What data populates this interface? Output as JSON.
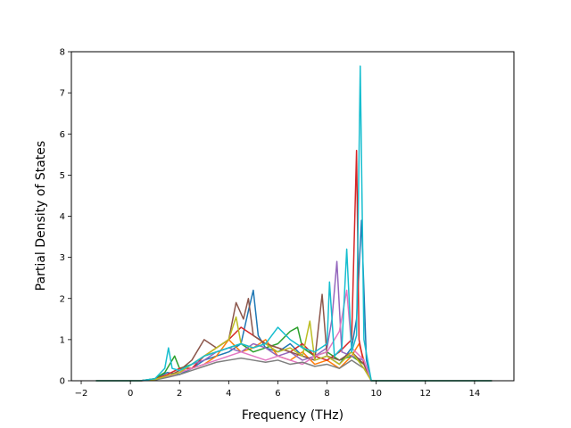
{
  "chart_data": {
    "type": "line",
    "title": "",
    "xlabel": "Frequency (THz)",
    "ylabel": "Partial Density of States",
    "xlim": [
      -2.4,
      15.6
    ],
    "ylim": [
      0,
      8
    ],
    "xticks": [
      -2,
      0,
      2,
      4,
      6,
      8,
      10,
      12,
      14
    ],
    "yticks": [
      0,
      1,
      2,
      3,
      4,
      5,
      6,
      7,
      8
    ],
    "xtick_labels": [
      "−2",
      "0",
      "2",
      "4",
      "6",
      "8",
      "10",
      "12",
      "14"
    ],
    "ytick_labels": [
      "0",
      "1",
      "2",
      "3",
      "4",
      "5",
      "6",
      "7",
      "8"
    ],
    "grid": false,
    "legend": "none",
    "colors": [
      "#1f77b4",
      "#ff7f0e",
      "#2ca02c",
      "#d62728",
      "#9467bd",
      "#8c564b",
      "#e377c2",
      "#7f7f7f",
      "#bcbd22",
      "#17becf"
    ],
    "series": [
      {
        "color": "#1f77b4",
        "x": [
          -1.4,
          0.4,
          1.0,
          1.5,
          2.0,
          2.5,
          3.0,
          3.5,
          4.0,
          4.5,
          4.8,
          5.0,
          5.2,
          5.5,
          6.0,
          6.5,
          7.0,
          7.5,
          8.0,
          8.5,
          9.0,
          9.2,
          9.4,
          9.6,
          9.8,
          14.7
        ],
        "y": [
          0,
          0,
          0.05,
          0.2,
          0.15,
          0.3,
          0.5,
          0.6,
          0.7,
          0.9,
          1.7,
          2.2,
          1.1,
          0.8,
          0.7,
          0.9,
          0.6,
          0.5,
          0.6,
          0.4,
          0.8,
          1.5,
          3.9,
          0.5,
          0,
          0
        ]
      },
      {
        "color": "#ff7f0e",
        "x": [
          -1.4,
          0.4,
          1.0,
          1.5,
          2.0,
          2.5,
          3.0,
          3.5,
          4.0,
          4.5,
          5.0,
          5.5,
          6.0,
          6.5,
          7.0,
          7.5,
          8.0,
          8.5,
          9.0,
          9.3,
          9.6,
          9.8,
          14.7
        ],
        "y": [
          0,
          0,
          0.03,
          0.1,
          0.2,
          0.3,
          0.4,
          0.6,
          1.0,
          0.7,
          0.8,
          1.0,
          0.6,
          0.5,
          0.7,
          0.4,
          0.5,
          0.3,
          0.6,
          0.9,
          0.3,
          0,
          0
        ]
      },
      {
        "color": "#2ca02c",
        "x": [
          -1.4,
          0.4,
          1.0,
          1.4,
          1.6,
          1.8,
          2.0,
          2.5,
          3.0,
          3.5,
          4.0,
          4.5,
          5.0,
          5.5,
          6.0,
          6.5,
          6.8,
          7.0,
          7.5,
          8.0,
          8.5,
          9.0,
          9.5,
          9.8,
          14.7
        ],
        "y": [
          0,
          0,
          0.05,
          0.2,
          0.4,
          0.6,
          0.3,
          0.4,
          0.6,
          0.7,
          0.8,
          0.9,
          0.7,
          0.8,
          0.9,
          1.2,
          1.3,
          0.8,
          0.6,
          0.7,
          0.5,
          0.6,
          0.4,
          0,
          0
        ]
      },
      {
        "color": "#d62728",
        "x": [
          -1.4,
          0.4,
          1.0,
          1.5,
          2.0,
          2.5,
          3.0,
          3.5,
          4.0,
          4.5,
          5.0,
          5.5,
          6.0,
          6.5,
          7.0,
          7.5,
          8.0,
          8.5,
          9.0,
          9.2,
          9.3,
          9.5,
          9.8,
          14.7
        ],
        "y": [
          0,
          0,
          0.04,
          0.15,
          0.3,
          0.3,
          0.6,
          0.8,
          1.0,
          1.3,
          1.1,
          0.9,
          0.8,
          0.7,
          0.9,
          0.6,
          0.5,
          0.7,
          1.0,
          5.6,
          1.0,
          0.4,
          0,
          0
        ]
      },
      {
        "color": "#9467bd",
        "x": [
          -1.4,
          0.4,
          1.0,
          1.5,
          2.0,
          2.5,
          3.0,
          3.5,
          4.0,
          4.5,
          5.0,
          5.5,
          6.0,
          6.5,
          7.0,
          7.5,
          8.0,
          8.2,
          8.4,
          8.6,
          9.0,
          9.5,
          9.8,
          14.7
        ],
        "y": [
          0,
          0,
          0.03,
          0.1,
          0.2,
          0.4,
          0.5,
          0.7,
          0.8,
          0.7,
          0.9,
          0.8,
          0.6,
          0.7,
          0.5,
          0.6,
          0.8,
          1.5,
          2.9,
          0.7,
          0.6,
          0.5,
          0,
          0
        ]
      },
      {
        "color": "#8c564b",
        "x": [
          -1.4,
          0.4,
          1.0,
          1.5,
          2.0,
          2.5,
          3.0,
          3.5,
          4.0,
          4.3,
          4.6,
          4.8,
          5.0,
          5.5,
          6.0,
          6.5,
          7.0,
          7.5,
          7.8,
          8.0,
          8.5,
          9.0,
          9.5,
          9.8,
          14.7
        ],
        "y": [
          0,
          0,
          0.04,
          0.1,
          0.25,
          0.5,
          1.0,
          0.8,
          1.0,
          1.9,
          1.5,
          2.0,
          1.1,
          0.9,
          0.8,
          0.7,
          0.6,
          0.5,
          2.1,
          0.6,
          0.5,
          0.7,
          0.4,
          0,
          0
        ]
      },
      {
        "color": "#e377c2",
        "x": [
          -1.4,
          0.4,
          1.0,
          1.5,
          2.0,
          2.5,
          3.0,
          3.5,
          4.0,
          4.5,
          5.0,
          5.5,
          6.0,
          6.5,
          7.0,
          7.5,
          8.0,
          8.5,
          8.8,
          9.0,
          9.5,
          9.8,
          14.7
        ],
        "y": [
          0,
          0,
          0.02,
          0.1,
          0.2,
          0.3,
          0.4,
          0.5,
          0.6,
          0.7,
          0.6,
          0.5,
          0.6,
          0.5,
          0.4,
          0.6,
          0.7,
          1.2,
          2.2,
          0.8,
          0.5,
          0,
          0
        ]
      },
      {
        "color": "#7f7f7f",
        "x": [
          -1.4,
          0.4,
          1.0,
          1.5,
          2.0,
          2.5,
          3.0,
          3.5,
          4.0,
          4.5,
          5.0,
          5.5,
          6.0,
          6.5,
          7.0,
          7.5,
          8.0,
          8.5,
          9.0,
          9.5,
          9.8,
          14.7
        ],
        "y": [
          0,
          0,
          0.02,
          0.08,
          0.15,
          0.25,
          0.35,
          0.45,
          0.5,
          0.55,
          0.5,
          0.45,
          0.5,
          0.4,
          0.45,
          0.35,
          0.4,
          0.3,
          0.5,
          0.3,
          0,
          0
        ]
      },
      {
        "color": "#bcbd22",
        "x": [
          -1.4,
          0.4,
          1.0,
          1.5,
          2.0,
          2.5,
          3.0,
          3.5,
          4.0,
          4.3,
          4.5,
          5.0,
          5.5,
          6.0,
          6.5,
          7.0,
          7.3,
          7.5,
          8.0,
          8.5,
          9.0,
          9.5,
          9.8,
          14.7
        ],
        "y": [
          0,
          0,
          0.03,
          0.12,
          0.2,
          0.4,
          0.6,
          0.8,
          1.0,
          1.55,
          0.9,
          0.8,
          0.9,
          0.7,
          0.8,
          0.6,
          1.45,
          0.5,
          0.6,
          0.4,
          0.7,
          0.3,
          0,
          0
        ]
      },
      {
        "color": "#17becf",
        "x": [
          -1.4,
          0.4,
          1.0,
          1.4,
          1.55,
          1.7,
          2.0,
          2.5,
          3.0,
          3.5,
          4.0,
          4.5,
          5.0,
          5.5,
          6.0,
          6.5,
          7.0,
          7.5,
          8.0,
          8.1,
          8.3,
          8.6,
          8.8,
          9.0,
          9.2,
          9.35,
          9.5,
          9.8,
          14.7
        ],
        "y": [
          0,
          0,
          0.05,
          0.3,
          0.8,
          0.3,
          0.25,
          0.4,
          0.6,
          0.7,
          0.8,
          0.9,
          0.8,
          0.9,
          1.3,
          1.0,
          0.8,
          0.7,
          0.9,
          2.4,
          0.6,
          0.8,
          3.2,
          0.7,
          1.1,
          7.65,
          1.0,
          0,
          0
        ]
      }
    ]
  }
}
